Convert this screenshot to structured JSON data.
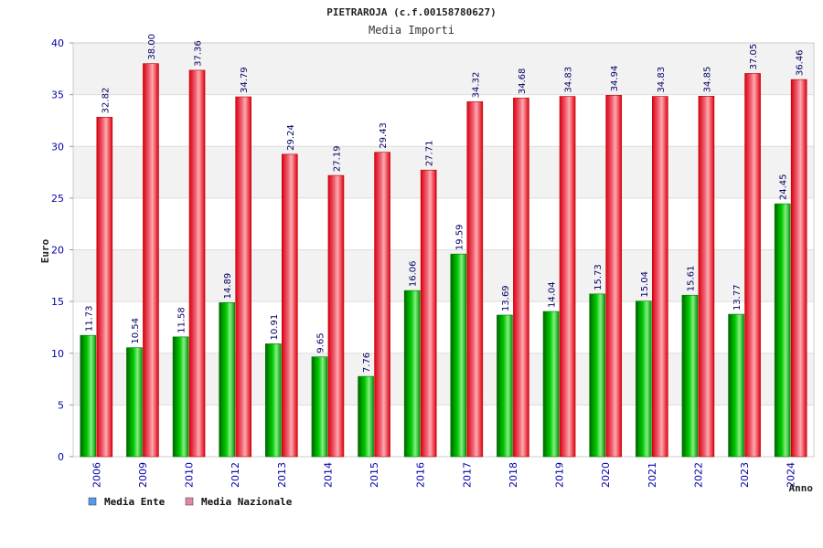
{
  "chart_data": {
    "type": "bar",
    "title": "PIETRAROJA (c.f.00158780627)",
    "subtitle": "Media Importi",
    "xlabel": "Anno",
    "ylabel": "Euro",
    "ylim": [
      0,
      40
    ],
    "yticks": [
      0,
      5,
      10,
      15,
      20,
      25,
      30,
      35,
      40
    ],
    "grid": true,
    "legend_position": "bottom-left",
    "categories": [
      "2006",
      "2009",
      "2010",
      "2012",
      "2013",
      "2014",
      "2015",
      "2016",
      "2017",
      "2018",
      "2019",
      "2020",
      "2021",
      "2022",
      "2023",
      "2024"
    ],
    "series": [
      {
        "name": "Media Ente",
        "legend_color": "#5599ee",
        "bar_color": "#00bb00",
        "values": [
          11.73,
          10.54,
          11.58,
          14.89,
          10.91,
          9.65,
          7.76,
          16.06,
          19.59,
          13.69,
          14.04,
          15.73,
          15.04,
          15.61,
          13.77,
          24.45
        ],
        "labels": [
          "11.73",
          "10.54",
          "11.58",
          "14.89",
          "10.91",
          "9.65",
          "7.76",
          "16.06",
          "19.59",
          "13.69",
          "14.04",
          "15.73",
          "15.04",
          "15.61",
          "13.77",
          "24.45"
        ]
      },
      {
        "name": "Media Nazionale",
        "legend_color": "#dd88aa",
        "bar_color": "#ee1122",
        "values": [
          32.82,
          38.0,
          37.36,
          34.79,
          29.24,
          27.19,
          29.43,
          27.71,
          34.32,
          34.68,
          34.83,
          34.94,
          34.83,
          34.85,
          37.05,
          36.46
        ],
        "labels": [
          "32.82",
          "38.00",
          "37.36",
          "34.79",
          "29.24",
          "27.19",
          "29.43",
          "27.71",
          "34.32",
          "34.68",
          "34.83",
          "34.94",
          "34.83",
          "34.85",
          "37.05",
          "36.46"
        ]
      }
    ]
  }
}
